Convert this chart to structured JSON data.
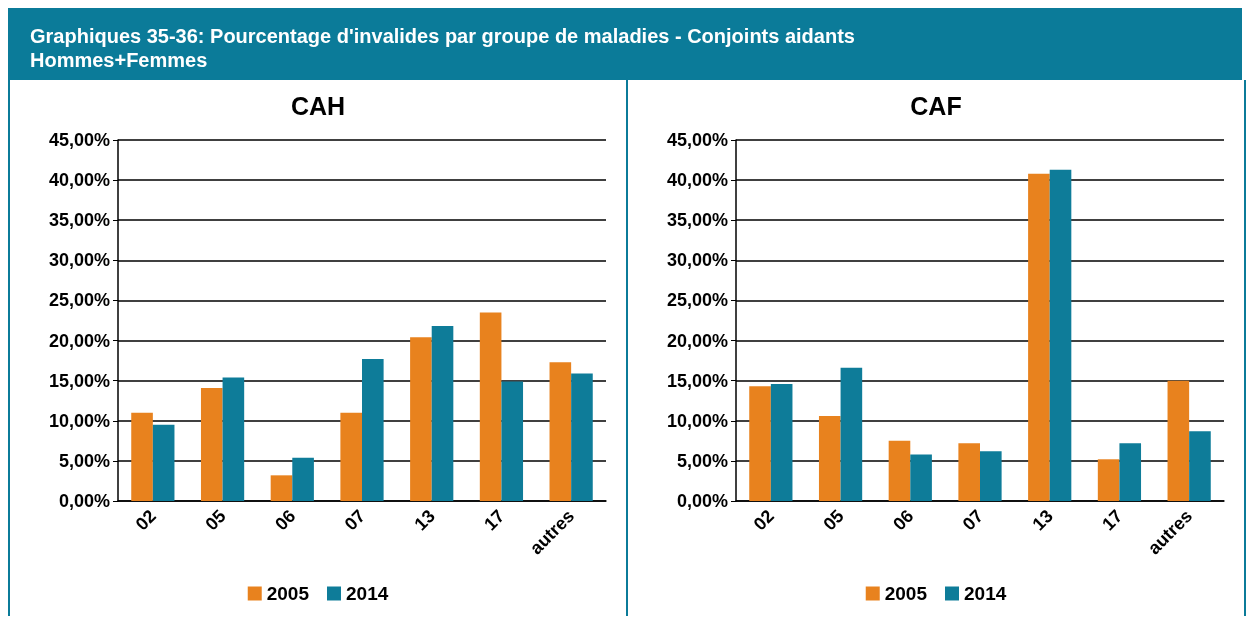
{
  "chart_data": [
    {
      "type": "bar",
      "title": "CAH",
      "annotations": [
        "Graphiques 35-36: Pourcentage d'invalides par groupe de maladies - Conjoints aidants\nHommes+Femmes"
      ],
      "categories": [
        "02",
        "05",
        "06",
        "07",
        "13",
        "17",
        "autres"
      ],
      "series": [
        {
          "name": "2005",
          "color": "#e8821e",
          "values": [
            11.0,
            14.1,
            3.2,
            11.0,
            20.4,
            23.5,
            17.3
          ]
        },
        {
          "name": "2014",
          "color": "#0e7c99",
          "values": [
            9.5,
            15.4,
            5.4,
            17.7,
            21.8,
            14.9,
            15.9
          ]
        }
      ],
      "ylim": [
        0,
        45
      ],
      "yticks": [
        {
          "value": 0,
          "label": "0,00%"
        },
        {
          "value": 5,
          "label": "5,00%"
        },
        {
          "value": 10,
          "label": "10,00%"
        },
        {
          "value": 15,
          "label": "15,00%"
        },
        {
          "value": 20,
          "label": "20,00%"
        },
        {
          "value": 25,
          "label": "25,00%"
        },
        {
          "value": 30,
          "label": "30,00%"
        },
        {
          "value": 35,
          "label": "35,00%"
        },
        {
          "value": 40,
          "label": "40,00%"
        },
        {
          "value": 45,
          "label": "45,00%"
        }
      ],
      "grid": "y",
      "legend": "bottom"
    },
    {
      "type": "bar",
      "title": "CAF",
      "categories": [
        "02",
        "05",
        "06",
        "07",
        "13",
        "17",
        "autres"
      ],
      "series": [
        {
          "name": "2005",
          "color": "#e8821e",
          "values": [
            14.3,
            10.6,
            7.5,
            7.2,
            40.8,
            5.2,
            15.0
          ]
        },
        {
          "name": "2014",
          "color": "#0e7c99",
          "values": [
            14.6,
            16.6,
            5.8,
            6.2,
            41.3,
            7.2,
            8.7
          ]
        }
      ],
      "ylim": [
        0,
        45
      ],
      "yticks": [
        {
          "value": 0,
          "label": "0,00%"
        },
        {
          "value": 5,
          "label": "5,00%"
        },
        {
          "value": 10,
          "label": "10,00%"
        },
        {
          "value": 15,
          "label": "15,00%"
        },
        {
          "value": 20,
          "label": "20,00%"
        },
        {
          "value": 25,
          "label": "25,00%"
        },
        {
          "value": 30,
          "label": "30,00%"
        },
        {
          "value": 35,
          "label": "35,00%"
        },
        {
          "value": 40,
          "label": "40,00%"
        },
        {
          "value": 45,
          "label": "45,00%"
        }
      ],
      "grid": "y",
      "legend": "bottom"
    }
  ]
}
